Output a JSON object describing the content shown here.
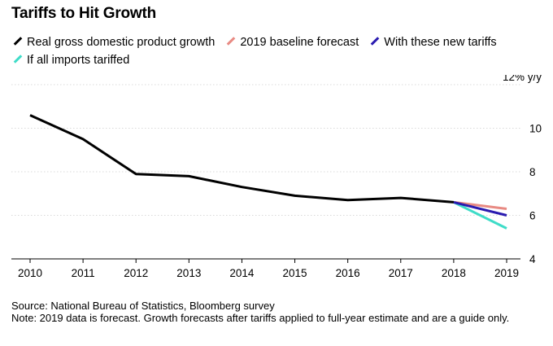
{
  "chart_data": {
    "type": "line",
    "title": "Tariffs to Hit Growth",
    "ylabel_unit": "% y/y",
    "ylim": [
      4,
      12
    ],
    "yticks": [
      4,
      6,
      8,
      10,
      12
    ],
    "x": [
      2010,
      2011,
      2012,
      2013,
      2014,
      2015,
      2016,
      2017,
      2018,
      2019
    ],
    "series": [
      {
        "name": "Real gross domestic product growth",
        "color": "#000000",
        "points": [
          [
            2010,
            10.6
          ],
          [
            2011,
            9.5
          ],
          [
            2012,
            7.9
          ],
          [
            2013,
            7.8
          ],
          [
            2014,
            7.3
          ],
          [
            2015,
            6.9
          ],
          [
            2016,
            6.7
          ],
          [
            2017,
            6.8
          ],
          [
            2018,
            6.6
          ]
        ]
      },
      {
        "name": "2019 baseline forecast",
        "color": "#e88a83",
        "points": [
          [
            2018,
            6.6
          ],
          [
            2019,
            6.3
          ]
        ]
      },
      {
        "name": "With these new tariffs",
        "color": "#2a1bb0",
        "points": [
          [
            2018,
            6.6
          ],
          [
            2019,
            6.0
          ]
        ]
      },
      {
        "name": "If all imports tariffed",
        "color": "#3fdcc8",
        "points": [
          [
            2018,
            6.6
          ],
          [
            2019,
            5.4
          ]
        ]
      }
    ]
  },
  "footer": {
    "source": "Source: National Bureau of Statistics, Bloomberg survey",
    "note": "Note: 2019 data is forecast. Growth forecasts after tariffs applied to full-year estimate and are a guide only."
  }
}
